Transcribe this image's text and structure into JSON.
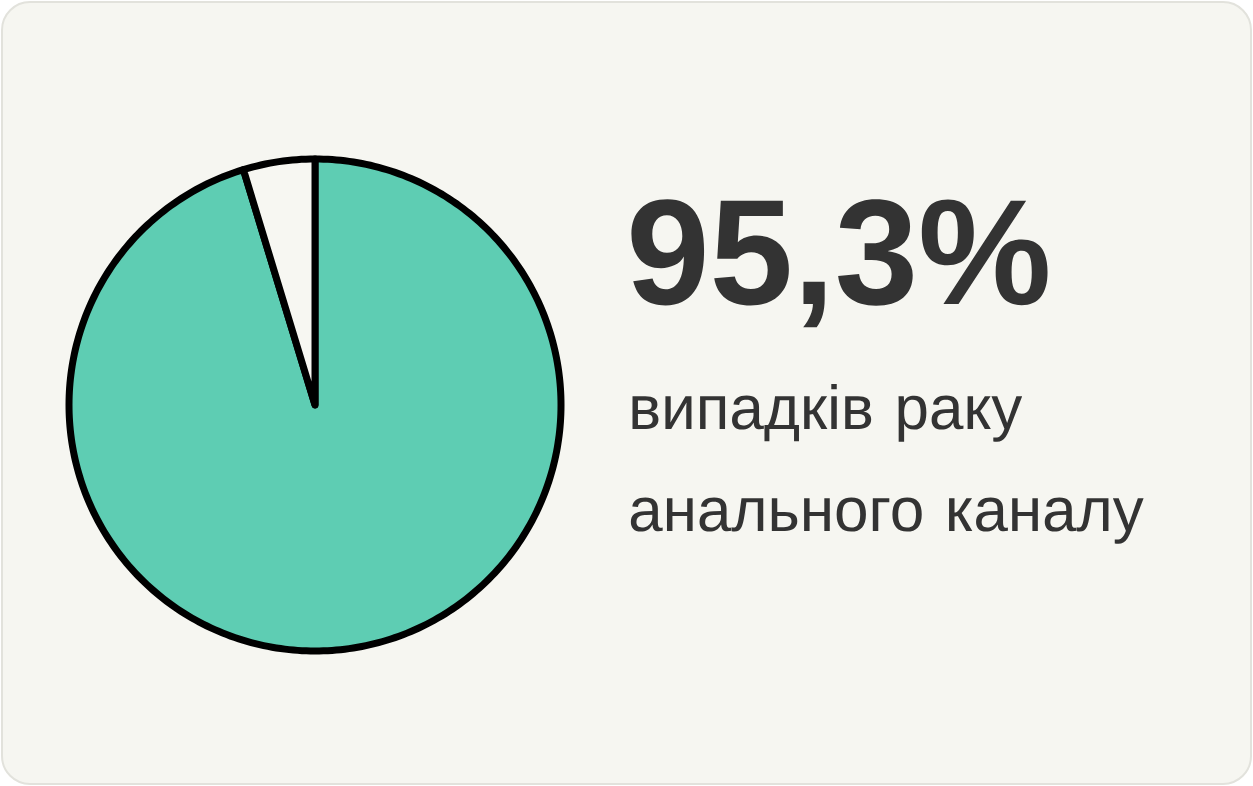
{
  "chart_data": {
    "type": "pie",
    "categories": [
      null,
      null
    ],
    "values": [
      95.3,
      4.7
    ],
    "colors": [
      "#5ecdb3",
      "#f7f7f2"
    ],
    "value_labels": [
      "95,3%",
      null
    ],
    "annotations": [
      "випадків раку анального каналу"
    ]
  }
}
